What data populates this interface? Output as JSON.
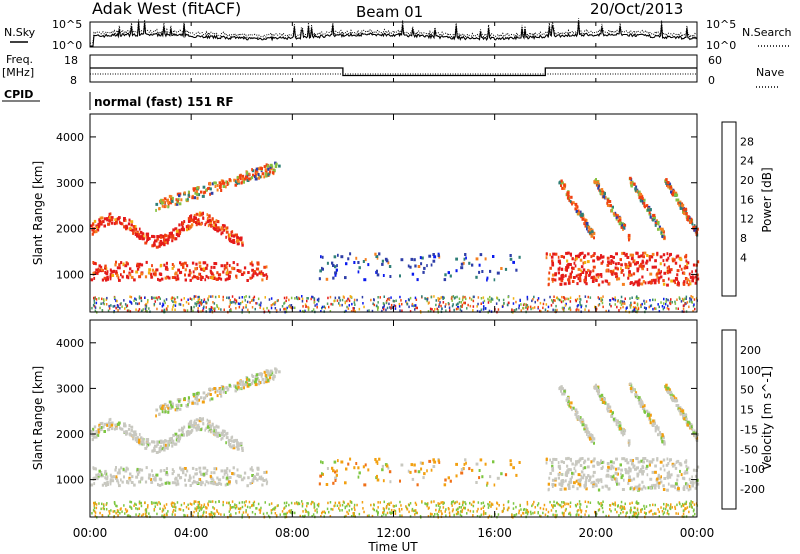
{
  "header": {
    "station": "Adak West (fitACF)",
    "beam": "Beam 01",
    "date": "20/Oct/2013"
  },
  "top_labels": {
    "nsky": "N.Sky",
    "nsearch": "N.Search",
    "freq_line1": "Freq.",
    "freq_line2": "[MHz]",
    "nave": "Nave",
    "cpid": "CPID",
    "cpid_value": "normal (fast) 151 RF",
    "noise_ticks": [
      "10^5",
      "10^0"
    ],
    "freq_ticks": [
      "18",
      "8"
    ],
    "nave_ticks": [
      "60",
      "0"
    ]
  },
  "x_axis": {
    "title": "Time UT",
    "ticks": [
      "00:00",
      "04:00",
      "08:00",
      "12:00",
      "16:00",
      "20:00",
      "00:00"
    ]
  },
  "colors": {
    "power": [
      "#0a1aee",
      "#2e3ea8",
      "#2f7f77",
      "#4e9e64",
      "#86c040",
      "#f2b010",
      "#f58020",
      "#f04010",
      "#e41a1a"
    ],
    "velocity": [
      "#2a3aa8",
      "#3f7a6a",
      "#55a050",
      "#7cc640",
      "#c8c8c0",
      "#f2a010",
      "#f07018",
      "#f03a10",
      "#e41a1a"
    ]
  },
  "chart_data": [
    {
      "type": "line",
      "panel": "noise",
      "series": [
        {
          "name": "N.Sky"
        },
        {
          "name": "N.Search"
        }
      ],
      "y_ticks": [
        "10^5",
        "10^0"
      ],
      "x_range_hours": [
        0,
        24
      ]
    },
    {
      "type": "line",
      "panel": "frequency / nave",
      "ylabel": "Freq. [MHz]",
      "y2label": "Nave",
      "y_ticks": [
        18,
        8
      ],
      "y2_ticks": [
        60,
        0
      ],
      "segments": [
        {
          "start": "00:00",
          "end": "10:00",
          "freq": 13.2
        },
        {
          "start": "10:00",
          "end": "18:00",
          "freq": 10.4
        },
        {
          "start": "18:00",
          "end": "24:00",
          "freq": 13.2
        }
      ]
    },
    {
      "type": "heatmap",
      "panel": "power",
      "ylabel": "Slant Range [km]",
      "y_ticks": [
        1000,
        2000,
        3000,
        4000
      ],
      "ylim": [
        180,
        4500
      ],
      "colorbar_label": "Power [dB]",
      "colorbar_ticks": [
        4,
        8,
        12,
        16,
        20,
        24,
        28
      ],
      "regions": [
        {
          "name": "lower_band",
          "start": "00:00",
          "end": "07:00",
          "range_km": [
            900,
            1300
          ],
          "level": "high"
        },
        {
          "name": "upper_band",
          "start": "00:00",
          "end": "06:00",
          "range_km": [
            1900,
            2450
          ],
          "level": "high"
        },
        {
          "name": "high_arc",
          "start": "02:30",
          "end": "07:30",
          "range_km": [
            2500,
            3500
          ],
          "level": "medium"
        },
        {
          "name": "midday_patches",
          "start": "09:00",
          "end": "17:00",
          "range_km": [
            900,
            1500
          ],
          "level": "low"
        },
        {
          "name": "evening_band",
          "start": "18:00",
          "end": "24:00",
          "range_km": [
            800,
            1500
          ],
          "level": "high"
        },
        {
          "name": "evening_streaks",
          "start": "18:30",
          "end": "24:00",
          "range_km": [
            1500,
            3100
          ],
          "level": "medium"
        }
      ]
    },
    {
      "type": "heatmap",
      "panel": "velocity",
      "ylabel": "Slant Range [km]",
      "y_ticks": [
        1000,
        2000,
        3000,
        4000
      ],
      "ylim": [
        180,
        4500
      ],
      "colorbar_label": "Velocity [m s^-1]",
      "colorbar_ticks": [
        200,
        100,
        50,
        15,
        -15,
        -50,
        -100,
        -200
      ]
    }
  ]
}
